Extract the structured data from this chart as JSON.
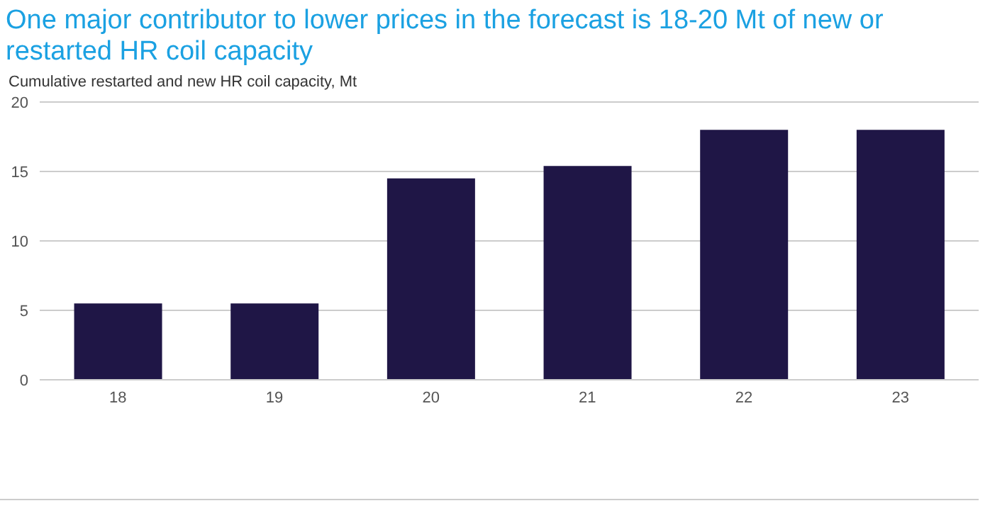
{
  "chart_data": {
    "type": "bar",
    "title": "One major contributor to lower prices in the forecast is 18-20 Mt of new or restarted HR coil capacity",
    "subtitle": "Cumulative restarted and new HR coil capacity, Mt",
    "categories": [
      "18",
      "19",
      "20",
      "21",
      "22",
      "23"
    ],
    "values": [
      5.5,
      5.5,
      14.5,
      15.4,
      18,
      18
    ],
    "color": "#1f1646",
    "ylim": [
      0,
      20
    ],
    "yticks": [
      0,
      5,
      10,
      15,
      20
    ],
    "grid": "y"
  }
}
